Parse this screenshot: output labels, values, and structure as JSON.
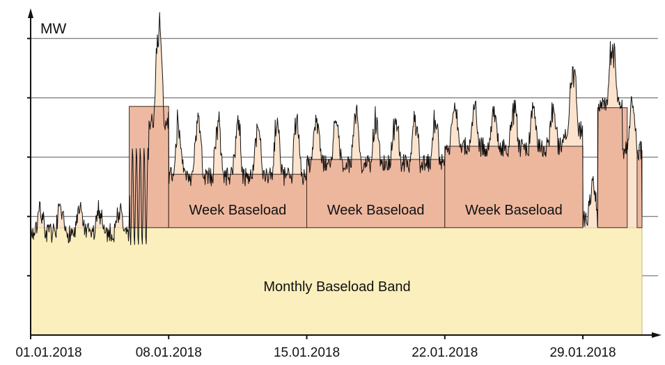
{
  "chart_data": {
    "type": "area",
    "ylabel": "MW",
    "x_tick_labels": [
      "01.01.2018",
      "08.01.2018",
      "15.01.2018",
      "22.01.2018",
      "29.01.2018"
    ],
    "x_start": "2018-01-01",
    "x_end": "2018-02-01",
    "grid": "horizontal",
    "monthly_baseload_band": {
      "label": "Monthly Baseload Band",
      "from": "2018-01-01",
      "to": "2018-02-01",
      "level": 0.326
    },
    "week_baseload_blocks": [
      {
        "label": "",
        "from": "2018-01-06",
        "to": "2018-01-08",
        "level": 0.694
      },
      {
        "label": "Week Baseload",
        "from": "2018-01-08",
        "to": "2018-01-15",
        "level": 0.488
      },
      {
        "label": "Week Baseload",
        "from": "2018-01-15",
        "to": "2018-01-22",
        "level": 0.533
      },
      {
        "label": "Week Baseload",
        "from": "2018-01-22",
        "to": "2018-01-29",
        "level": 0.573
      },
      {
        "label": "",
        "from": "2018-01-29 18:00",
        "to": "2018-01-31 06:00",
        "level": 0.69
      },
      {
        "label": "",
        "from": "2018-01-31 18:00",
        "to": "2018-02-01",
        "level": 0.56
      }
    ],
    "load_profile_segments": [
      {
        "from": "2018-01-01",
        "to": "2018-01-06",
        "base": 0.31,
        "daily_swing": 0.08
      },
      {
        "from": "2018-01-07",
        "to": "2018-01-08",
        "base": 0.65,
        "daily_swing": 0.35
      },
      {
        "from": "2018-01-08",
        "to": "2018-01-15",
        "base": 0.48,
        "daily_swing": 0.2
      },
      {
        "from": "2018-01-15",
        "to": "2018-01-22",
        "base": 0.52,
        "daily_swing": 0.17
      },
      {
        "from": "2018-01-22",
        "to": "2018-01-28",
        "base": 0.57,
        "daily_swing": 0.14
      },
      {
        "from": "2018-01-28",
        "to": "2018-01-29",
        "base": 0.62,
        "daily_swing": 0.25
      },
      {
        "from": "2018-01-29",
        "to": "2018-01-29 18:00",
        "base": 0.35,
        "daily_swing": 0.12
      },
      {
        "from": "2018-01-29 18:00",
        "to": "2018-01-31",
        "base": 0.7,
        "daily_swing": 0.22
      },
      {
        "from": "2018-01-31",
        "to": "2018-02-01",
        "base": 0.56,
        "daily_swing": 0.16
      }
    ]
  },
  "colors": {
    "monthly_band": "#fbefbd",
    "monthly_band_edge": "#c9b678",
    "week_block": "#ecb39a",
    "week_block_edge": "#3b2a22",
    "profile_fill": "#fbe3cd",
    "profile_line": "#111111",
    "grid": "#5a5a5a",
    "axis": "#111111"
  }
}
